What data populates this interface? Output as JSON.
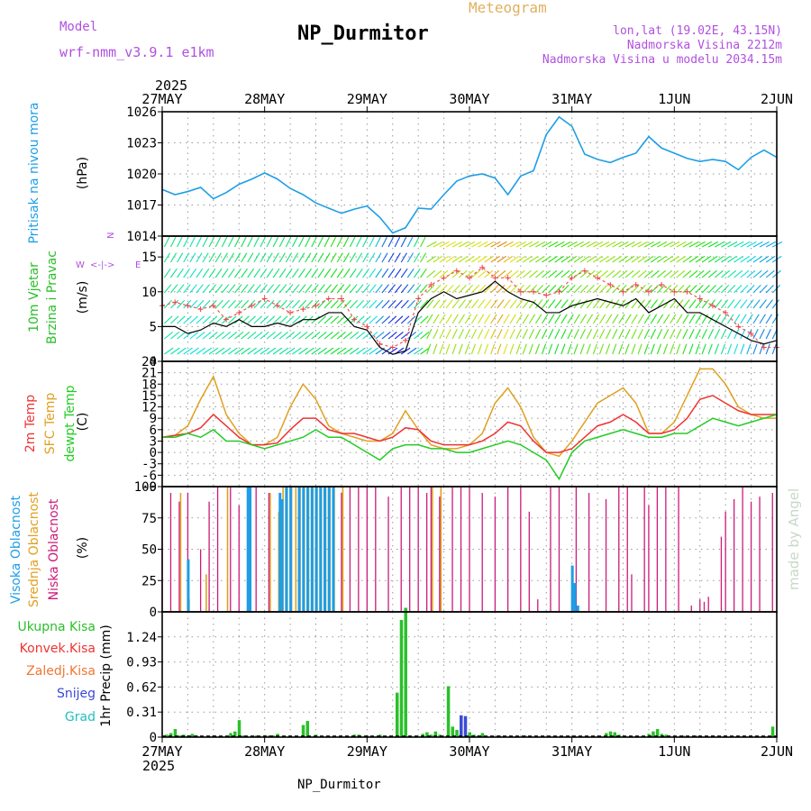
{
  "header": {
    "model_label": "Model",
    "model_name": "wrf-nmm_v3.9.1 e1km",
    "title": "NP_Durmitor",
    "meteogram_label": "Meteogram",
    "lonlat": "lon,lat (19.02E, 43.15N)",
    "altitude": "Nadmorska Visina 2212m",
    "model_altitude": "Nadmorska Visina u modelu 2034.15m",
    "footer": "NP_Durmitor",
    "watermark": "made by Angel",
    "year_top": "2025",
    "year_bottom": "2025"
  },
  "colors": {
    "pressure": "#1e9ee6",
    "temp2m": "#ee3333",
    "sfc": "#e0a020",
    "dewpt": "#22cc22",
    "high_cloud": "#1e9ee6",
    "mid_cloud": "#e0a020",
    "low_cloud": "#cc1a7a",
    "precip_total": "#2ac02a",
    "snow": "#3a4ad8",
    "hail": "#22c0c0",
    "convective": "#ee3333",
    "frozen": "#ee7733",
    "model_purple": "#b050e0"
  },
  "x_axis": {
    "labels": [
      "27MAY",
      "28MAY",
      "29MAY",
      "30MAY",
      "31MAY",
      "1JUN",
      "2JUN"
    ]
  },
  "chart_data": [
    {
      "type": "line",
      "panel": "pressure",
      "ylabel": "Pritisak na nivou mora",
      "unit": "(hPa)",
      "ylim": [
        1014,
        1026
      ],
      "yticks": [
        "1014",
        "1017",
        "1020",
        "1023",
        "1026"
      ],
      "grid": true,
      "x_hours": [
        0,
        3,
        6,
        9,
        12,
        15,
        18,
        21,
        24,
        27,
        30,
        33,
        36,
        39,
        42,
        45,
        48,
        51,
        54,
        57,
        60,
        63,
        66,
        69,
        72,
        75,
        78,
        81,
        84,
        87,
        90,
        93,
        96,
        99,
        102,
        105,
        108,
        111,
        114,
        117,
        120,
        123,
        126,
        129,
        132,
        135,
        138,
        141,
        144
      ],
      "series": [
        {
          "name": "Pritisak na nivou mora",
          "values": [
            1018.5,
            1018.0,
            1018.3,
            1018.7,
            1017.6,
            1018.2,
            1019.0,
            1019.5,
            1020.1,
            1019.5,
            1018.6,
            1018.0,
            1017.2,
            1016.7,
            1016.2,
            1016.6,
            1016.9,
            1015.8,
            1014.3,
            1014.8,
            1016.7,
            1016.6,
            1018.0,
            1019.3,
            1019.8,
            1020.0,
            1019.6,
            1018.0,
            1019.8,
            1020.3,
            1023.8,
            1025.5,
            1024.6,
            1021.9,
            1021.4,
            1021.1,
            1021.6,
            1022.0,
            1023.6,
            1022.5,
            1022.0,
            1021.5,
            1021.2,
            1021.4,
            1021.2,
            1020.4,
            1021.6,
            1022.3,
            1021.6
          ]
        }
      ]
    },
    {
      "type": "line",
      "panel": "wind",
      "ylabel": "10m Vjetar Brzina i Pravac",
      "unit": "(m/s)",
      "ylim": [
        0,
        18
      ],
      "yticks": [
        "0",
        "5",
        "10",
        "15"
      ],
      "grid": true,
      "direction_legend": [
        "N",
        "z",
        "E",
        "W",
        "S",
        "ap"
      ],
      "x_hours": [
        0,
        3,
        6,
        9,
        12,
        15,
        18,
        21,
        24,
        27,
        30,
        33,
        36,
        39,
        42,
        45,
        48,
        51,
        54,
        57,
        60,
        63,
        66,
        69,
        72,
        75,
        78,
        81,
        84,
        87,
        90,
        93,
        96,
        99,
        102,
        105,
        108,
        111,
        114,
        117,
        120,
        123,
        126,
        129,
        132,
        135,
        138,
        141,
        144
      ],
      "series": [
        {
          "name": "wind speed",
          "values": [
            5,
            5,
            4,
            4.5,
            5.5,
            5,
            6,
            5,
            5,
            5.5,
            5,
            6,
            6,
            7,
            7,
            5,
            4.5,
            2,
            1,
            1.5,
            7,
            9,
            10,
            9,
            9.5,
            10,
            11.5,
            10,
            9,
            8.5,
            7,
            7,
            8,
            8.5,
            9,
            8.5,
            8,
            9,
            7,
            8,
            9,
            7,
            7,
            6,
            5,
            4,
            3,
            2.5,
            3
          ]
        },
        {
          "name": "gust",
          "values": [
            8,
            8.5,
            8,
            7.5,
            8,
            6,
            7,
            8,
            9,
            8,
            7,
            7.5,
            8,
            9,
            9,
            6,
            5,
            2.5,
            2,
            3,
            9,
            11,
            12,
            13,
            12,
            13.5,
            12,
            12,
            10,
            10,
            9.5,
            10,
            12,
            13,
            12,
            11,
            10,
            11,
            10,
            11,
            10,
            10,
            9,
            8,
            7,
            5,
            4,
            2,
            2
          ]
        }
      ]
    },
    {
      "type": "line",
      "panel": "temperature",
      "unit": "(C)",
      "ylim": [
        -9,
        24
      ],
      "yticks": [
        "-9",
        "-6",
        "-3",
        "0",
        "3",
        "6",
        "9",
        "12",
        "15",
        "18",
        "21",
        "24"
      ],
      "grid": true,
      "x_hours": [
        0,
        3,
        6,
        9,
        12,
        15,
        18,
        21,
        24,
        27,
        30,
        33,
        36,
        39,
        42,
        45,
        48,
        51,
        54,
        57,
        60,
        63,
        66,
        69,
        72,
        75,
        78,
        81,
        84,
        87,
        90,
        93,
        96,
        99,
        102,
        105,
        108,
        111,
        114,
        117,
        120,
        123,
        126,
        129,
        132,
        135,
        138,
        141,
        144
      ],
      "series": [
        {
          "name": "2m Temp",
          "values": [
            4,
            4.5,
            5,
            6.5,
            10,
            7,
            4,
            2,
            2,
            2.5,
            6,
            9,
            9,
            6,
            5,
            5,
            4,
            3,
            4,
            6.5,
            6,
            3,
            2,
            2,
            2,
            3,
            5,
            8,
            7,
            3,
            0,
            0,
            1,
            4,
            7,
            8,
            10,
            8,
            5,
            5,
            6,
            9,
            14,
            15,
            13,
            11,
            10,
            10,
            10
          ]
        },
        {
          "name": "SFC Temp",
          "values": [
            4,
            4.5,
            7,
            14,
            20,
            10,
            5,
            2,
            2,
            4,
            12,
            18,
            14,
            7,
            5,
            4,
            3,
            3,
            5,
            11,
            6,
            2,
            1,
            1,
            2,
            5,
            13,
            17,
            12,
            4,
            0,
            -1,
            3,
            8,
            13,
            15,
            17,
            13,
            5,
            5,
            8,
            15,
            22,
            22,
            18,
            12,
            10,
            9,
            9
          ]
        },
        {
          "name": "dewpt Temp",
          "values": [
            4,
            4,
            5,
            4,
            6,
            3,
            3,
            2,
            1,
            2,
            3,
            4,
            6,
            4,
            4,
            2,
            0,
            -2,
            1,
            2,
            2,
            1,
            1,
            0,
            0,
            1,
            2,
            3,
            2,
            0,
            -2,
            -7,
            0,
            3,
            4,
            5,
            6,
            5,
            4,
            4,
            5,
            5,
            7,
            9,
            8,
            7,
            8,
            9,
            10
          ]
        }
      ]
    },
    {
      "type": "bar",
      "panel": "clouds",
      "ylabel_high": "Visoka Oblacnost",
      "ylabel_mid": "Srednja Oblacnost",
      "ylabel_low": "Niska Oblacnost",
      "unit": "(%)",
      "ylim": [
        0,
        100
      ],
      "yticks": [
        "0",
        "25",
        "50",
        "75",
        "100"
      ],
      "grid": true,
      "low": [
        [
          0,
          100
        ],
        [
          2,
          95
        ],
        [
          4,
          88
        ],
        [
          6,
          95
        ],
        [
          9,
          50
        ],
        [
          11,
          88
        ],
        [
          13,
          100
        ],
        [
          16,
          100
        ],
        [
          18,
          85
        ],
        [
          20,
          100
        ],
        [
          22,
          100
        ],
        [
          25,
          95
        ],
        [
          28,
          65
        ],
        [
          30,
          100
        ],
        [
          33,
          100
        ],
        [
          35,
          70
        ],
        [
          37,
          100
        ],
        [
          39,
          100
        ],
        [
          42,
          95
        ],
        [
          44,
          100
        ],
        [
          46,
          100
        ],
        [
          48,
          100
        ],
        [
          50,
          100
        ],
        [
          53,
          92
        ],
        [
          56,
          100
        ],
        [
          58,
          100
        ],
        [
          60,
          100
        ],
        [
          62,
          95
        ],
        [
          63,
          100
        ],
        [
          65,
          92
        ],
        [
          68,
          100
        ],
        [
          70,
          100
        ],
        [
          72,
          100
        ],
        [
          75,
          95
        ],
        [
          78,
          92
        ],
        [
          81,
          100
        ],
        [
          84,
          100
        ],
        [
          86,
          80
        ],
        [
          88,
          10
        ],
        [
          91,
          100
        ],
        [
          93,
          100
        ],
        [
          97,
          100
        ],
        [
          100,
          95
        ],
        [
          104,
          90
        ],
        [
          107,
          100
        ],
        [
          109,
          100
        ],
        [
          110,
          30
        ],
        [
          113,
          100
        ],
        [
          114,
          85
        ],
        [
          116,
          100
        ],
        [
          118,
          100
        ],
        [
          121,
          100
        ],
        [
          124,
          5
        ],
        [
          126,
          10
        ],
        [
          127,
          8
        ],
        [
          128,
          12
        ],
        [
          131,
          60
        ],
        [
          132,
          80
        ],
        [
          134,
          90
        ],
        [
          136,
          100
        ],
        [
          138,
          88
        ],
        [
          140,
          92
        ],
        [
          143,
          95
        ]
      ],
      "mid": [
        [
          4,
          95
        ],
        [
          6,
          10
        ],
        [
          10,
          30
        ],
        [
          15,
          100
        ],
        [
          25,
          95
        ],
        [
          27,
          80
        ],
        [
          28,
          100
        ],
        [
          29,
          100
        ],
        [
          30,
          100
        ],
        [
          31,
          100
        ],
        [
          32,
          100
        ],
        [
          33,
          100
        ],
        [
          34,
          100
        ],
        [
          35,
          100
        ],
        [
          36,
          100
        ],
        [
          37,
          100
        ],
        [
          38,
          100
        ],
        [
          39,
          100
        ],
        [
          40,
          100
        ],
        [
          42,
          100
        ],
        [
          63,
          100
        ],
        [
          65,
          100
        ]
      ],
      "high": [
        [
          6,
          42
        ],
        [
          20,
          100
        ],
        [
          20.5,
          100
        ],
        [
          27.5,
          95
        ],
        [
          28,
          90
        ],
        [
          29,
          100
        ],
        [
          30,
          100
        ],
        [
          32,
          100
        ],
        [
          33,
          100
        ],
        [
          34,
          100
        ],
        [
          35,
          100
        ],
        [
          36,
          100
        ],
        [
          37,
          100
        ],
        [
          38,
          100
        ],
        [
          39,
          100
        ],
        [
          40,
          100
        ],
        [
          96,
          37
        ],
        [
          96.6,
          23
        ],
        [
          97.3,
          5
        ]
      ]
    },
    {
      "type": "bar",
      "panel": "precip",
      "ylabel": "1hr Precip (mm)",
      "legend": [
        "Ukupna Kisa",
        "Konvek.Kisa",
        "Zaledj.Kisa",
        "Snijeg",
        "Grad"
      ],
      "ylim": [
        0,
        1.55
      ],
      "yticks": [
        "0",
        "0.31",
        "0.62",
        "0.93",
        "1.24"
      ],
      "grid": true,
      "total": [
        [
          1,
          0.03
        ],
        [
          2,
          0.05
        ],
        [
          3,
          0.1
        ],
        [
          4,
          0.02
        ],
        [
          5,
          0.03
        ],
        [
          6,
          0.02
        ],
        [
          7,
          0.04
        ],
        [
          8,
          0.02
        ],
        [
          12,
          0.02
        ],
        [
          16,
          0.05
        ],
        [
          17,
          0.07
        ],
        [
          18,
          0.21
        ],
        [
          19,
          0.02
        ],
        [
          22,
          0.02
        ],
        [
          24,
          0.02
        ],
        [
          25,
          0.02
        ],
        [
          26,
          0.02
        ],
        [
          27,
          0.04
        ],
        [
          33,
          0.15
        ],
        [
          34,
          0.2
        ],
        [
          36,
          0.03
        ],
        [
          45,
          0.03
        ],
        [
          46,
          0.03
        ],
        [
          48,
          0.02
        ],
        [
          51,
          0.03
        ],
        [
          55,
          0.55
        ],
        [
          56,
          1.45
        ],
        [
          57,
          1.6
        ],
        [
          61,
          0.04
        ],
        [
          62,
          0.06
        ],
        [
          63,
          0.03
        ],
        [
          64,
          0.07
        ],
        [
          65,
          0.03
        ],
        [
          67,
          0.63
        ],
        [
          68,
          0.13
        ],
        [
          69,
          0.09
        ],
        [
          72,
          0.06
        ],
        [
          73,
          0.03
        ],
        [
          74,
          0.02
        ],
        [
          75,
          0.05
        ],
        [
          79,
          0.02
        ],
        [
          85,
          0.02
        ],
        [
          104,
          0.05
        ],
        [
          105,
          0.07
        ],
        [
          106,
          0.06
        ],
        [
          107,
          0.03
        ],
        [
          114,
          0.04
        ],
        [
          115,
          0.07
        ],
        [
          116,
          0.1
        ],
        [
          117,
          0.04
        ],
        [
          118,
          0.03
        ],
        [
          122,
          0.02
        ],
        [
          125,
          0.02
        ],
        [
          126,
          0.01
        ],
        [
          129,
          0.02
        ],
        [
          143,
          0.13
        ]
      ],
      "snow": [
        [
          70,
          0.27
        ],
        [
          71,
          0.26
        ]
      ]
    }
  ]
}
